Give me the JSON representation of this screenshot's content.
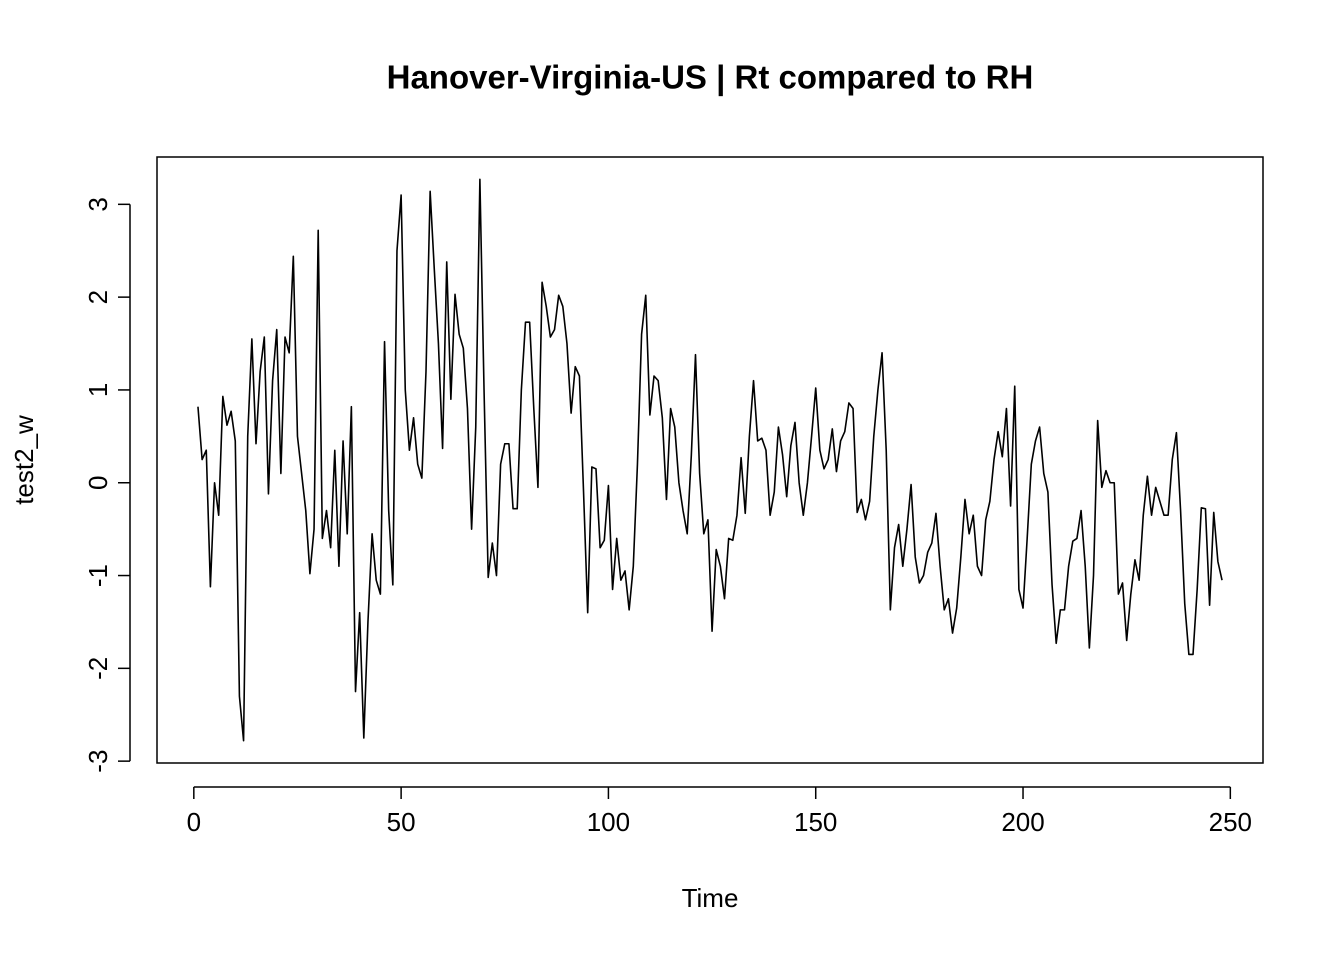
{
  "chart_data": {
    "type": "line",
    "title": "Hanover-Virginia-US | Rt compared to RH",
    "xlabel": "Time",
    "ylabel": "test2_w",
    "color": "#000000",
    "x": [
      1,
      2,
      3,
      4,
      5,
      6,
      7,
      8,
      9,
      10,
      11,
      12,
      13,
      14,
      15,
      16,
      17,
      18,
      19,
      20,
      21,
      22,
      23,
      24,
      25,
      26,
      27,
      28,
      29,
      30,
      31,
      32,
      33,
      34,
      35,
      36,
      37,
      38,
      39,
      40,
      41,
      42,
      43,
      44,
      45,
      46,
      47,
      48,
      49,
      50,
      51,
      52,
      53,
      54,
      55,
      56,
      57,
      58,
      59,
      60,
      61,
      62,
      63,
      64,
      65,
      66,
      67,
      68,
      69,
      70,
      71,
      72,
      73,
      74,
      75,
      76,
      77,
      78,
      79,
      80,
      81,
      82,
      83,
      84,
      85,
      86,
      87,
      88,
      89,
      90,
      91,
      92,
      93,
      94,
      95,
      96,
      97,
      98,
      99,
      100,
      101,
      102,
      103,
      104,
      105,
      106,
      107,
      108,
      109,
      110,
      111,
      112,
      113,
      114,
      115,
      116,
      117,
      118,
      119,
      120,
      121,
      122,
      123,
      124,
      125,
      126,
      127,
      128,
      129,
      130,
      131,
      132,
      133,
      134,
      135,
      136,
      137,
      138,
      139,
      140,
      141,
      142,
      143,
      144,
      145,
      146,
      147,
      148,
      149,
      150,
      151,
      152,
      153,
      154,
      155,
      156,
      157,
      158,
      159,
      160,
      161,
      162,
      163,
      164,
      165,
      166,
      167,
      168,
      169,
      170,
      171,
      172,
      173,
      174,
      175,
      176,
      177,
      178,
      179,
      180,
      181,
      182,
      183,
      184,
      185,
      186,
      187,
      188,
      189,
      190,
      191,
      192,
      193,
      194,
      195,
      196,
      197,
      198,
      199,
      200,
      201,
      202,
      203,
      204,
      205,
      206,
      207,
      208,
      209,
      210,
      211,
      212,
      213,
      214,
      215,
      216,
      217,
      218,
      219,
      220,
      221,
      222,
      223,
      224,
      225,
      226,
      227,
      228,
      229,
      230,
      231,
      232,
      233,
      234,
      235,
      236,
      237,
      238,
      239,
      240,
      241,
      242,
      243,
      244,
      245,
      246,
      247,
      248
    ],
    "values": [
      0.82,
      0.25,
      0.35,
      -1.12,
      0.0,
      -0.35,
      0.93,
      0.62,
      0.77,
      0.45,
      -2.3,
      -2.78,
      0.5,
      1.55,
      0.42,
      1.2,
      1.57,
      -0.12,
      1.1,
      1.65,
      0.1,
      1.57,
      1.4,
      2.44,
      0.5,
      0.1,
      -0.3,
      -0.98,
      -0.5,
      2.72,
      -0.6,
      -0.3,
      -0.7,
      0.35,
      -0.9,
      0.45,
      -0.55,
      0.82,
      -2.25,
      -1.4,
      -2.75,
      -1.5,
      -0.55,
      -1.05,
      -1.2,
      1.52,
      -0.3,
      -1.1,
      2.5,
      3.1,
      1.0,
      0.35,
      0.7,
      0.2,
      0.05,
      1.2,
      3.14,
      2.3,
      1.5,
      0.37,
      2.38,
      0.9,
      2.03,
      1.6,
      1.45,
      0.8,
      -0.5,
      0.6,
      3.27,
      1.0,
      -1.02,
      -0.65,
      -1.0,
      0.2,
      0.42,
      0.42,
      -0.28,
      -0.28,
      1.0,
      1.73,
      1.73,
      0.8,
      -0.05,
      2.16,
      1.9,
      1.57,
      1.65,
      2.02,
      1.9,
      1.5,
      0.75,
      1.25,
      1.15,
      -0.1,
      -1.4,
      0.17,
      0.15,
      -0.7,
      -0.62,
      -0.03,
      -1.15,
      -0.6,
      -1.05,
      -0.95,
      -1.37,
      -0.9,
      0.2,
      1.6,
      2.02,
      0.73,
      1.15,
      1.1,
      0.7,
      -0.18,
      0.8,
      0.6,
      0.0,
      -0.3,
      -0.55,
      0.3,
      1.38,
      0.1,
      -0.55,
      -0.4,
      -1.6,
      -0.72,
      -0.9,
      -1.25,
      -0.6,
      -0.62,
      -0.35,
      0.27,
      -0.33,
      0.5,
      1.1,
      0.45,
      0.48,
      0.35,
      -0.35,
      -0.1,
      0.6,
      0.3,
      -0.15,
      0.4,
      0.65,
      0.0,
      -0.35,
      0.0,
      0.5,
      1.02,
      0.35,
      0.15,
      0.25,
      0.58,
      0.12,
      0.45,
      0.55,
      0.86,
      0.8,
      -0.32,
      -0.18,
      -0.4,
      -0.2,
      0.5,
      1.0,
      1.4,
      0.35,
      -1.37,
      -0.7,
      -0.45,
      -0.9,
      -0.5,
      -0.02,
      -0.8,
      -1.08,
      -1.0,
      -0.75,
      -0.65,
      -0.33,
      -0.9,
      -1.37,
      -1.25,
      -1.62,
      -1.35,
      -0.8,
      -0.18,
      -0.55,
      -0.35,
      -0.9,
      -1.0,
      -0.4,
      -0.2,
      0.25,
      0.55,
      0.28,
      0.8,
      -0.25,
      1.04,
      -1.15,
      -1.35,
      -0.6,
      0.2,
      0.45,
      0.6,
      0.1,
      -0.1,
      -1.1,
      -1.73,
      -1.37,
      -1.37,
      -0.9,
      -0.63,
      -0.6,
      -0.3,
      -0.9,
      -1.78,
      -1.0,
      0.67,
      -0.05,
      0.13,
      0.0,
      0.0,
      -1.2,
      -1.08,
      -1.7,
      -1.2,
      -0.83,
      -1.05,
      -0.35,
      0.07,
      -0.35,
      -0.05,
      -0.2,
      -0.35,
      -0.35,
      0.25,
      0.54,
      -0.3,
      -1.3,
      -1.85,
      -1.85,
      -1.15,
      -0.27,
      -0.28,
      -1.32,
      -0.32,
      -0.85,
      -1.05
    ],
    "xlim": [
      -8.88,
      257.88
    ],
    "xticks": [
      0,
      50,
      100,
      150,
      200,
      250
    ],
    "ylim": [
      -3.02,
      3.51
    ],
    "yticks": [
      -3,
      -2,
      -1,
      0,
      1,
      2,
      3
    ]
  }
}
